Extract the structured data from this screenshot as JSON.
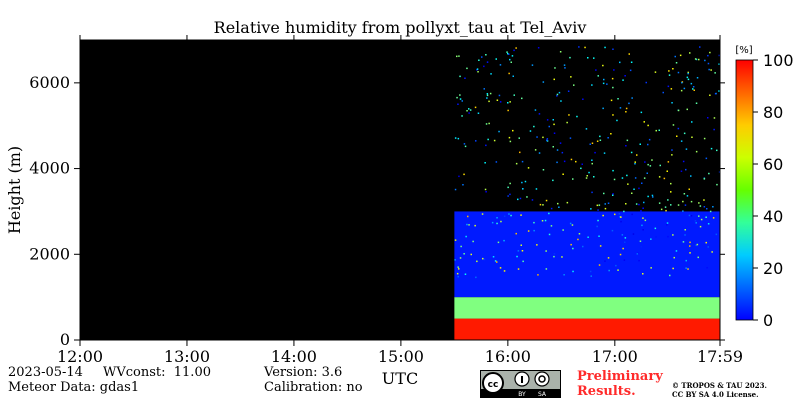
{
  "chart_data": {
    "type": "heatmap",
    "title": "Relative humidity from pollyxt_tau at Tel_Aviv",
    "ylabel": "Height (m)",
    "xlabel": "UTC",
    "x_ticks": [
      "12:00",
      "13:00",
      "14:00",
      "15:00",
      "16:00",
      "17:00",
      "17:59"
    ],
    "x_range": [
      "12:00",
      "17:59"
    ],
    "y_ticks": [
      0,
      2000,
      4000,
      6000
    ],
    "ylim": [
      0,
      7000
    ],
    "colorbar": {
      "unit": "[%]",
      "ticks": [
        0,
        20,
        40,
        60,
        80,
        100
      ],
      "range": [
        0,
        100
      ],
      "colormap": "jet"
    },
    "data_start_time": "15:30",
    "no_data_color": "#000000",
    "layers": [
      {
        "from_m": 0,
        "to_m": 500,
        "rh_percent": 85
      },
      {
        "from_m": 500,
        "to_m": 1000,
        "rh_percent": 50
      },
      {
        "from_m": 1000,
        "to_m": 3000,
        "rh_percent": 15
      }
    ]
  },
  "footer": {
    "date": "2023-05-14",
    "wvconst": "WVconst:  11.00",
    "meteor": "Meteor Data: gdas1",
    "version": "Version: 3.6",
    "calibration": "Calibration: no",
    "preliminary_line1": "Preliminary",
    "preliminary_line2": "Results.",
    "copyright_line1": "© TROPOS & TAU 2023.",
    "copyright_line2": "CC BY SA 4.0 License.",
    "cc_badge_labels": [
      "BY",
      "SA"
    ]
  }
}
